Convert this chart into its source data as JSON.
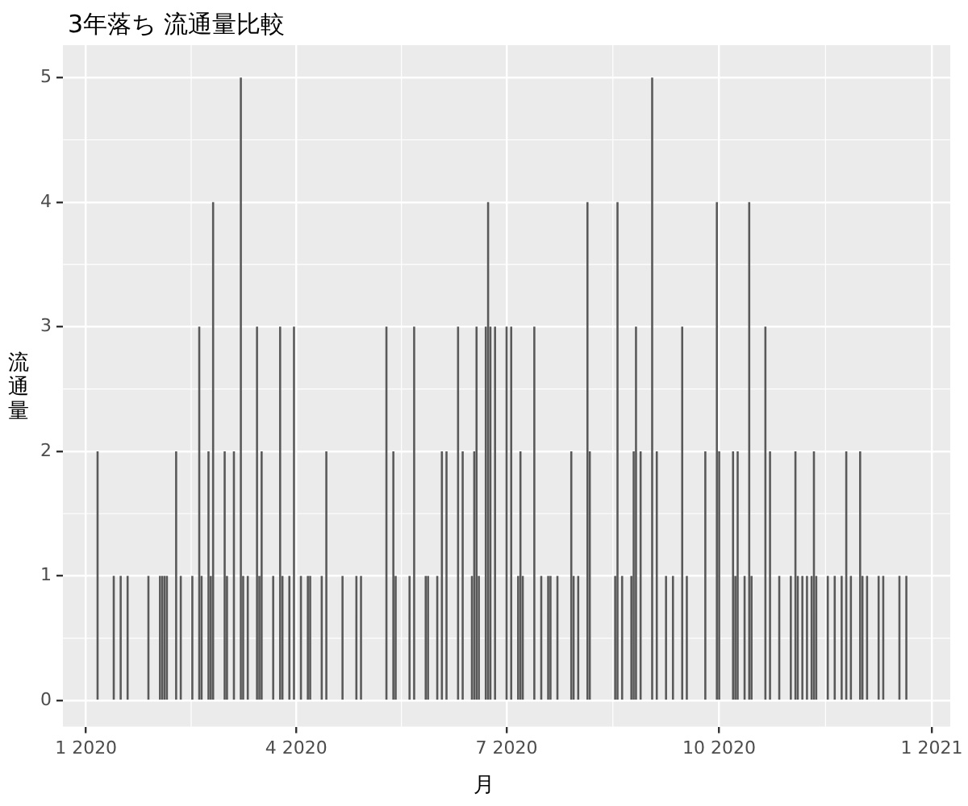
{
  "chart_data": {
    "type": "bar",
    "title": "3年落ち 流通量比較",
    "xlabel": "月",
    "ylabel": "流通量",
    "color": "#595959",
    "grid": true,
    "legend": false,
    "x": [
      "2020-01-06",
      "2020-01-13",
      "2020-01-16",
      "2020-01-19",
      "2020-01-28",
      "2020-02-02",
      "2020-02-03",
      "2020-02-04",
      "2020-02-05",
      "2020-02-09",
      "2020-02-11",
      "2020-02-16",
      "2020-02-19",
      "2020-02-20",
      "2020-02-23",
      "2020-02-24",
      "2020-02-25",
      "2020-03-01",
      "2020-03-02",
      "2020-03-05",
      "2020-03-08",
      "2020-03-09",
      "2020-03-11",
      "2020-03-15",
      "2020-03-16",
      "2020-03-17",
      "2020-03-22",
      "2020-03-25",
      "2020-03-26",
      "2020-03-29",
      "2020-03-31",
      "2020-04-03",
      "2020-04-06",
      "2020-04-07",
      "2020-04-12",
      "2020-04-14",
      "2020-04-21",
      "2020-04-27",
      "2020-04-29",
      "2020-05-10",
      "2020-05-13",
      "2020-05-14",
      "2020-05-20",
      "2020-05-22",
      "2020-05-27",
      "2020-05-28",
      "2020-06-01",
      "2020-06-03",
      "2020-06-05",
      "2020-06-10",
      "2020-06-12",
      "2020-06-16",
      "2020-06-17",
      "2020-06-18",
      "2020-06-19",
      "2020-06-22",
      "2020-06-23",
      "2020-06-24",
      "2020-06-26",
      "2020-07-01",
      "2020-07-03",
      "2020-07-06",
      "2020-07-07",
      "2020-07-08",
      "2020-07-13",
      "2020-07-16",
      "2020-07-19",
      "2020-07-20",
      "2020-07-23",
      "2020-07-29",
      "2020-07-30",
      "2020-08-01",
      "2020-08-05",
      "2020-08-06",
      "2020-08-17",
      "2020-08-18",
      "2020-08-20",
      "2020-08-24",
      "2020-08-25",
      "2020-08-26",
      "2020-08-28",
      "2020-09-02",
      "2020-09-04",
      "2020-09-08",
      "2020-09-11",
      "2020-09-15",
      "2020-09-17",
      "2020-09-25",
      "2020-09-30",
      "2020-10-01",
      "2020-10-07",
      "2020-10-08",
      "2020-10-09",
      "2020-10-12",
      "2020-10-14",
      "2020-10-15",
      "2020-10-21",
      "2020-10-23",
      "2020-10-27",
      "2020-11-01",
      "2020-11-03",
      "2020-11-04",
      "2020-11-06",
      "2020-11-08",
      "2020-11-10",
      "2020-11-11",
      "2020-11-12",
      "2020-11-17",
      "2020-11-20",
      "2020-11-23",
      "2020-11-25",
      "2020-11-27",
      "2020-12-01",
      "2020-12-02",
      "2020-12-04",
      "2020-12-09",
      "2020-12-11",
      "2020-12-18",
      "2020-12-21"
    ],
    "values": [
      2,
      1,
      1,
      1,
      1,
      1,
      1,
      1,
      1,
      2,
      1,
      1,
      3,
      1,
      2,
      1,
      4,
      2,
      1,
      2,
      5,
      1,
      1,
      3,
      1,
      2,
      1,
      3,
      1,
      1,
      3,
      1,
      1,
      1,
      1,
      2,
      1,
      1,
      1,
      3,
      2,
      1,
      1,
      3,
      1,
      1,
      1,
      2,
      2,
      3,
      2,
      1,
      2,
      3,
      1,
      3,
      4,
      3,
      3,
      3,
      3,
      1,
      2,
      1,
      3,
      1,
      1,
      1,
      1,
      2,
      1,
      1,
      4,
      2,
      1,
      4,
      1,
      1,
      2,
      3,
      2,
      5,
      2,
      1,
      1,
      3,
      1,
      2,
      4,
      2,
      2,
      1,
      2,
      1,
      4,
      1,
      3,
      2,
      1,
      1,
      2,
      1,
      1,
      1,
      1,
      2,
      1,
      1,
      1,
      1,
      2,
      1,
      2,
      1,
      1,
      1,
      1,
      1,
      1
    ],
    "xlim": [
      "2019-12-22",
      "2021-01-09"
    ],
    "xticks": [
      {
        "value": "2020-01-01",
        "label": "1 2020"
      },
      {
        "value": "2020-04-01",
        "label": "4 2020"
      },
      {
        "value": "2020-07-01",
        "label": "7 2020"
      },
      {
        "value": "2020-10-01",
        "label": "10 2020"
      },
      {
        "value": "2021-01-01",
        "label": "1 2021"
      }
    ],
    "ylim": [
      -0.21,
      5.26
    ],
    "yticks": [
      0,
      1,
      2,
      3,
      4,
      5
    ]
  }
}
